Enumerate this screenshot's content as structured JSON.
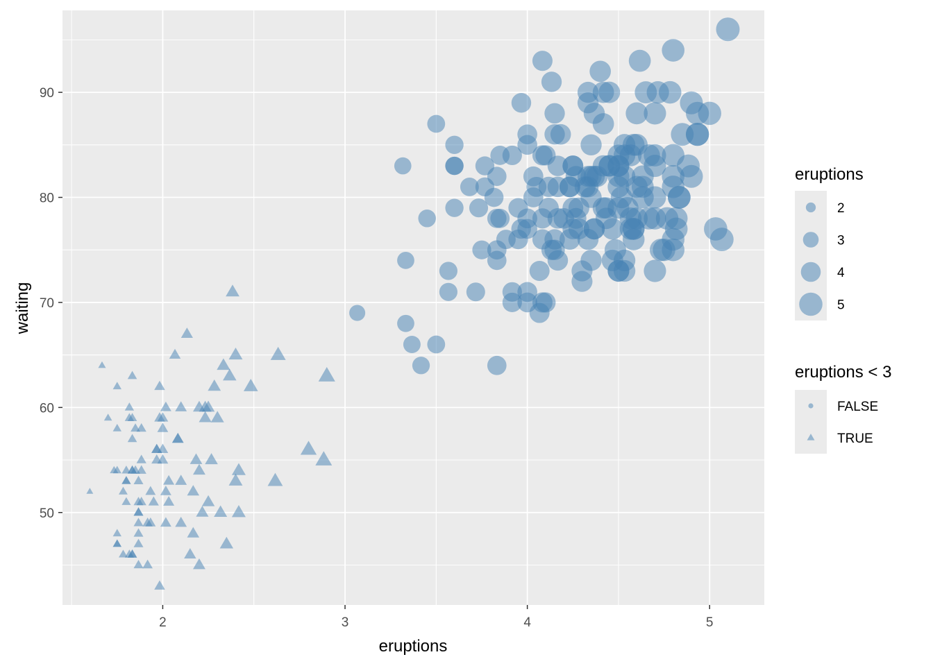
{
  "chart_data": {
    "type": "scatter",
    "xlabel": "eruptions",
    "ylabel": "waiting",
    "xlim": [
      1.45,
      5.3
    ],
    "ylim": [
      41.2,
      97.8
    ],
    "x_ticks": [
      2,
      3,
      4,
      5
    ],
    "y_ticks": [
      50,
      60,
      70,
      80,
      90
    ],
    "grid": true,
    "point_color": "#4682b4",
    "point_alpha": 0.5,
    "panel_color": "#ebebeb",
    "legend_position": "right",
    "size_legend": {
      "title": "eruptions",
      "entries": [
        {
          "label": "2",
          "value": 2
        },
        {
          "label": "3",
          "value": 3
        },
        {
          "label": "4",
          "value": 4
        },
        {
          "label": "5",
          "value": 5
        }
      ]
    },
    "shape_legend": {
      "title": "eruptions < 3",
      "entries": [
        {
          "label": "FALSE",
          "shape": "circle"
        },
        {
          "label": "TRUE",
          "shape": "triangle"
        }
      ]
    },
    "points": [
      [
        3.6,
        79
      ],
      [
        1.8,
        54
      ],
      [
        3.333,
        74
      ],
      [
        2.283,
        62
      ],
      [
        4.533,
        85
      ],
      [
        2.883,
        55
      ],
      [
        4.7,
        88
      ],
      [
        3.6,
        85
      ],
      [
        1.95,
        51
      ],
      [
        4.35,
        85
      ],
      [
        1.833,
        54
      ],
      [
        3.917,
        84
      ],
      [
        4.2,
        78
      ],
      [
        1.75,
        47
      ],
      [
        4.7,
        83
      ],
      [
        2.167,
        52
      ],
      [
        1.75,
        62
      ],
      [
        4.8,
        84
      ],
      [
        1.6,
        52
      ],
      [
        4.25,
        79
      ],
      [
        1.8,
        51
      ],
      [
        1.75,
        47
      ],
      [
        3.45,
        78
      ],
      [
        3.067,
        69
      ],
      [
        4.533,
        74
      ],
      [
        3.6,
        83
      ],
      [
        1.967,
        55
      ],
      [
        4.083,
        76
      ],
      [
        3.85,
        78
      ],
      [
        4.433,
        79
      ],
      [
        4.3,
        73
      ],
      [
        4.467,
        77
      ],
      [
        3.367,
        66
      ],
      [
        4.033,
        80
      ],
      [
        3.833,
        74
      ],
      [
        2.017,
        52
      ],
      [
        1.867,
        48
      ],
      [
        4.833,
        80
      ],
      [
        1.833,
        59
      ],
      [
        4.783,
        90
      ],
      [
        4.35,
        80
      ],
      [
        1.883,
        58
      ],
      [
        4.567,
        84
      ],
      [
        1.75,
        58
      ],
      [
        4.533,
        73
      ],
      [
        3.317,
        83
      ],
      [
        3.833,
        64
      ],
      [
        2.1,
        53
      ],
      [
        4.633,
        82
      ],
      [
        2,
        59
      ],
      [
        4.8,
        75
      ],
      [
        4.716,
        90
      ],
      [
        1.833,
        54
      ],
      [
        4.833,
        80
      ],
      [
        1.733,
        54
      ],
      [
        4.883,
        83
      ],
      [
        3.717,
        71
      ],
      [
        1.667,
        64
      ],
      [
        4.567,
        77
      ],
      [
        4.317,
        81
      ],
      [
        2.233,
        59
      ],
      [
        4.5,
        84
      ],
      [
        1.75,
        48
      ],
      [
        4.8,
        82
      ],
      [
        1.817,
        60
      ],
      [
        4.4,
        92
      ],
      [
        4.167,
        78
      ],
      [
        4.7,
        78
      ],
      [
        2.067,
        65
      ],
      [
        4.7,
        73
      ],
      [
        4.033,
        82
      ],
      [
        1.967,
        56
      ],
      [
        4.5,
        79
      ],
      [
        4,
        71
      ],
      [
        1.983,
        62
      ],
      [
        5.067,
        76
      ],
      [
        2.017,
        60
      ],
      [
        4.567,
        78
      ],
      [
        3.883,
        76
      ],
      [
        3.6,
        83
      ],
      [
        4.133,
        75
      ],
      [
        4.333,
        82
      ],
      [
        4.1,
        70
      ],
      [
        2.633,
        65
      ],
      [
        4.067,
        73
      ],
      [
        4.933,
        88
      ],
      [
        3.95,
        76
      ],
      [
        4.517,
        80
      ],
      [
        2.167,
        48
      ],
      [
        4,
        86
      ],
      [
        2.2,
        60
      ],
      [
        4.333,
        90
      ],
      [
        1.867,
        50
      ],
      [
        4.817,
        78
      ],
      [
        1.833,
        63
      ],
      [
        4.3,
        72
      ],
      [
        4.667,
        84
      ],
      [
        3.75,
        75
      ],
      [
        1.867,
        51
      ],
      [
        4.9,
        82
      ],
      [
        2.483,
        62
      ],
      [
        4.367,
        88
      ],
      [
        2.1,
        49
      ],
      [
        4.5,
        83
      ],
      [
        4.05,
        81
      ],
      [
        1.867,
        47
      ],
      [
        4.7,
        84
      ],
      [
        1.783,
        52
      ],
      [
        4.85,
        86
      ],
      [
        3.683,
        81
      ],
      [
        4.733,
        75
      ],
      [
        2.3,
        59
      ],
      [
        4.9,
        89
      ],
      [
        4.417,
        79
      ],
      [
        1.7,
        59
      ],
      [
        4.633,
        81
      ],
      [
        2.317,
        50
      ],
      [
        4.6,
        85
      ],
      [
        1.817,
        59
      ],
      [
        4.417,
        87
      ],
      [
        2.617,
        53
      ],
      [
        4.067,
        69
      ],
      [
        4.25,
        77
      ],
      [
        1.967,
        56
      ],
      [
        4.6,
        88
      ],
      [
        3.767,
        81
      ],
      [
        1.917,
        45
      ],
      [
        4.5,
        82
      ],
      [
        2.267,
        55
      ],
      [
        4.65,
        90
      ],
      [
        1.867,
        45
      ],
      [
        4.167,
        83
      ],
      [
        2.8,
        56
      ],
      [
        4.333,
        89
      ],
      [
        1.833,
        46
      ],
      [
        4.383,
        82
      ],
      [
        1.883,
        51
      ],
      [
        4.933,
        86
      ],
      [
        2.033,
        53
      ],
      [
        3.733,
        79
      ],
      [
        4.233,
        81
      ],
      [
        2.233,
        60
      ],
      [
        4.533,
        82
      ],
      [
        4.817,
        77
      ],
      [
        4.333,
        76
      ],
      [
        1.983,
        59
      ],
      [
        4.633,
        80
      ],
      [
        2.017,
        49
      ],
      [
        5.1,
        96
      ],
      [
        1.8,
        53
      ],
      [
        5.033,
        77
      ],
      [
        4,
        77
      ],
      [
        2.4,
        65
      ],
      [
        4.6,
        81
      ],
      [
        3.567,
        71
      ],
      [
        4,
        70
      ],
      [
        4.5,
        81
      ],
      [
        4.083,
        93
      ],
      [
        1.8,
        53
      ],
      [
        3.967,
        89
      ],
      [
        2.2,
        45
      ],
      [
        4.15,
        86
      ],
      [
        2,
        58
      ],
      [
        3.833,
        78
      ],
      [
        3.5,
        66
      ],
      [
        4.583,
        76
      ],
      [
        2.367,
        63
      ],
      [
        5,
        88
      ],
      [
        1.933,
        52
      ],
      [
        4.617,
        93
      ],
      [
        1.917,
        49
      ],
      [
        2.083,
        57
      ],
      [
        4.583,
        77
      ],
      [
        3.333,
        68
      ],
      [
        4.167,
        81
      ],
      [
        4.333,
        81
      ],
      [
        4.5,
        73
      ],
      [
        2.417,
        50
      ],
      [
        4,
        85
      ],
      [
        4.167,
        74
      ],
      [
        1.883,
        55
      ],
      [
        4.583,
        77
      ],
      [
        4.25,
        83
      ],
      [
        3.767,
        83
      ],
      [
        2.033,
        51
      ],
      [
        4.433,
        78
      ],
      [
        4.083,
        84
      ],
      [
        1.833,
        46
      ],
      [
        4.417,
        83
      ],
      [
        2.183,
        55
      ],
      [
        4.8,
        81
      ],
      [
        1.833,
        57
      ],
      [
        4.8,
        76
      ],
      [
        4.1,
        84
      ],
      [
        3.966,
        77
      ],
      [
        4.233,
        81
      ],
      [
        3.5,
        87
      ],
      [
        4.366,
        77
      ],
      [
        2.25,
        51
      ],
      [
        4.667,
        78
      ],
      [
        2.1,
        60
      ],
      [
        4.35,
        82
      ],
      [
        4.133,
        91
      ],
      [
        1.867,
        53
      ],
      [
        4.6,
        78
      ],
      [
        1.783,
        46
      ],
      [
        4.367,
        77
      ],
      [
        3.85,
        84
      ],
      [
        1.933,
        49
      ],
      [
        4.5,
        83
      ],
      [
        2.383,
        71
      ],
      [
        4.7,
        80
      ],
      [
        1.867,
        49
      ],
      [
        3.833,
        75
      ],
      [
        3.417,
        64
      ],
      [
        4.233,
        76
      ],
      [
        2.4,
        53
      ],
      [
        4.8,
        94
      ],
      [
        2,
        55
      ],
      [
        4.15,
        76
      ],
      [
        1.867,
        50
      ],
      [
        4.267,
        82
      ],
      [
        1.75,
        54
      ],
      [
        4.483,
        75
      ],
      [
        4,
        78
      ],
      [
        4.117,
        79
      ],
      [
        4.083,
        78
      ],
      [
        4.267,
        78
      ],
      [
        3.917,
        70
      ],
      [
        4.55,
        79
      ],
      [
        4.083,
        70
      ],
      [
        2.417,
        54
      ],
      [
        4.183,
        86
      ],
      [
        2.217,
        50
      ],
      [
        4.45,
        90
      ],
      [
        1.883,
        54
      ],
      [
        1.85,
        54
      ],
      [
        4.283,
        77
      ],
      [
        3.95,
        79
      ],
      [
        2.333,
        64
      ],
      [
        4.15,
        75
      ],
      [
        2.35,
        47
      ],
      [
        4.933,
        86
      ],
      [
        2.9,
        63
      ],
      [
        4.583,
        85
      ],
      [
        3.833,
        82
      ],
      [
        2.083,
        57
      ],
      [
        4.367,
        82
      ],
      [
        2.133,
        67
      ],
      [
        4.35,
        74
      ],
      [
        2.2,
        54
      ],
      [
        4.45,
        83
      ],
      [
        3.567,
        73
      ],
      [
        4.5,
        73
      ],
      [
        4.15,
        88
      ],
      [
        3.817,
        80
      ],
      [
        3.917,
        71
      ],
      [
        4.45,
        83
      ],
      [
        2,
        56
      ],
      [
        4.283,
        79
      ],
      [
        4.767,
        78
      ],
      [
        4.533,
        84
      ],
      [
        1.85,
        58
      ],
      [
        4.25,
        83
      ],
      [
        1.983,
        43
      ],
      [
        2.25,
        60
      ],
      [
        4.75,
        75
      ],
      [
        4.117,
        81
      ],
      [
        2.15,
        46
      ],
      [
        4.417,
        90
      ],
      [
        1.817,
        46
      ],
      [
        4.467,
        74
      ]
    ]
  }
}
